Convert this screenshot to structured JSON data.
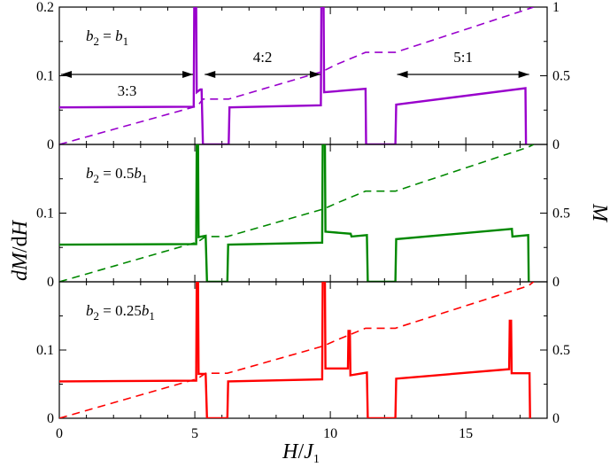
{
  "chart_data": {
    "type": "line",
    "xlabel": "H/J1",
    "ylabel_left": "dM/dH",
    "ylabel_right": "M",
    "xlim": [
      0,
      18
    ],
    "x_ticks": [
      "0",
      "5",
      "10",
      "15"
    ],
    "x_tick_values": [
      0,
      5,
      10,
      15
    ],
    "left_ticks": [
      "0",
      "0.1",
      "0.2"
    ],
    "right_ticks": [
      "0",
      "0.5",
      "1"
    ],
    "top_panel_left_ticks": [
      "0",
      "0.1",
      "0.2"
    ],
    "top_panel_right_ticks": [
      "0",
      "0.5",
      "1"
    ],
    "panels": [
      {
        "label": "b2 = b1",
        "color": "#9900cc",
        "dMdH_ylim": [
          0,
          0.2
        ],
        "M_ylim": [
          0,
          1
        ],
        "dMdH": [
          [
            0,
            0.054
          ],
          [
            4.96,
            0.055
          ],
          [
            4.98,
            0.2
          ],
          [
            5.05,
            0.2
          ],
          [
            5.07,
            0.076
          ],
          [
            5.2,
            0.08
          ],
          [
            5.25,
            0.08
          ],
          [
            5.3,
            0
          ],
          [
            6.25,
            0
          ],
          [
            6.28,
            0.054
          ],
          [
            9.65,
            0.057
          ],
          [
            9.67,
            0.2
          ],
          [
            9.75,
            0.2
          ],
          [
            9.77,
            0.076
          ],
          [
            11.3,
            0.081
          ],
          [
            11.32,
            0
          ],
          [
            12.4,
            0
          ],
          [
            12.43,
            0.058
          ],
          [
            17.2,
            0.082
          ],
          [
            17.22,
            0
          ]
        ],
        "M": [
          [
            0,
            0
          ],
          [
            5.1,
            0.28
          ],
          [
            5.3,
            0.33
          ],
          [
            6.25,
            0.33
          ],
          [
            9.7,
            0.53
          ],
          [
            10.2,
            0.58
          ],
          [
            11.3,
            0.67
          ],
          [
            12.4,
            0.67
          ],
          [
            17.2,
            0.98
          ],
          [
            17.5,
            1.0
          ]
        ],
        "annotations": [
          {
            "text": "3:3",
            "x_from": 0,
            "x_to": 5.0
          },
          {
            "text": "4:2",
            "x_from": 5.3,
            "x_to": 9.7
          },
          {
            "text": "5:1",
            "x_from": 12.4,
            "x_to": 17.4
          }
        ]
      },
      {
        "label": "b2 = 0.5b1",
        "color": "#008800",
        "dMdH_ylim": [
          0,
          0.2
        ],
        "M_ylim": [
          0,
          1
        ],
        "dMdH": [
          [
            0,
            0.054
          ],
          [
            5.05,
            0.055
          ],
          [
            5.07,
            0.2
          ],
          [
            5.12,
            0.2
          ],
          [
            5.14,
            0.065
          ],
          [
            5.4,
            0.067
          ],
          [
            5.45,
            0
          ],
          [
            6.2,
            0
          ],
          [
            6.23,
            0.054
          ],
          [
            9.7,
            0.057
          ],
          [
            9.72,
            0.2
          ],
          [
            9.8,
            0.2
          ],
          [
            9.82,
            0.073
          ],
          [
            10.75,
            0.07
          ],
          [
            10.78,
            0.066
          ],
          [
            11.35,
            0.068
          ],
          [
            11.38,
            0
          ],
          [
            12.4,
            0
          ],
          [
            12.43,
            0.062
          ],
          [
            16.7,
            0.077
          ],
          [
            16.72,
            0.066
          ],
          [
            17.3,
            0.068
          ],
          [
            17.32,
            0
          ]
        ],
        "M": [
          [
            0,
            0
          ],
          [
            5.1,
            0.29
          ],
          [
            5.4,
            0.33
          ],
          [
            6.2,
            0.33
          ],
          [
            9.75,
            0.53
          ],
          [
            10.2,
            0.57
          ],
          [
            11.3,
            0.66
          ],
          [
            12.4,
            0.66
          ],
          [
            17.3,
            0.98
          ],
          [
            17.5,
            1.0
          ]
        ],
        "annotations": []
      },
      {
        "label": "b2 = 0.25b1",
        "color": "#ff0000",
        "dMdH_ylim": [
          0,
          0.2
        ],
        "M_ylim": [
          0,
          1
        ],
        "dMdH": [
          [
            0,
            0.054
          ],
          [
            5.05,
            0.055
          ],
          [
            5.07,
            0.2
          ],
          [
            5.12,
            0.2
          ],
          [
            5.14,
            0.065
          ],
          [
            5.4,
            0.065
          ],
          [
            5.45,
            0
          ],
          [
            6.2,
            0
          ],
          [
            6.23,
            0.054
          ],
          [
            9.7,
            0.057
          ],
          [
            9.72,
            0.2
          ],
          [
            9.8,
            0.2
          ],
          [
            9.82,
            0.073
          ],
          [
            10.65,
            0.073
          ],
          [
            10.67,
            0.128
          ],
          [
            10.72,
            0.128
          ],
          [
            10.74,
            0.063
          ],
          [
            11.35,
            0.067
          ],
          [
            11.38,
            0
          ],
          [
            12.4,
            0
          ],
          [
            12.43,
            0.058
          ],
          [
            16.6,
            0.072
          ],
          [
            16.62,
            0.143
          ],
          [
            16.67,
            0.143
          ],
          [
            16.69,
            0.066
          ],
          [
            17.35,
            0.066
          ],
          [
            17.37,
            0
          ]
        ],
        "M": [
          [
            0,
            0
          ],
          [
            5.1,
            0.29
          ],
          [
            5.4,
            0.33
          ],
          [
            6.2,
            0.33
          ],
          [
            9.75,
            0.53
          ],
          [
            10.2,
            0.57
          ],
          [
            11.3,
            0.66
          ],
          [
            12.4,
            0.66
          ],
          [
            17.3,
            0.97
          ],
          [
            17.5,
            1.0
          ]
        ],
        "annotations": []
      }
    ]
  }
}
